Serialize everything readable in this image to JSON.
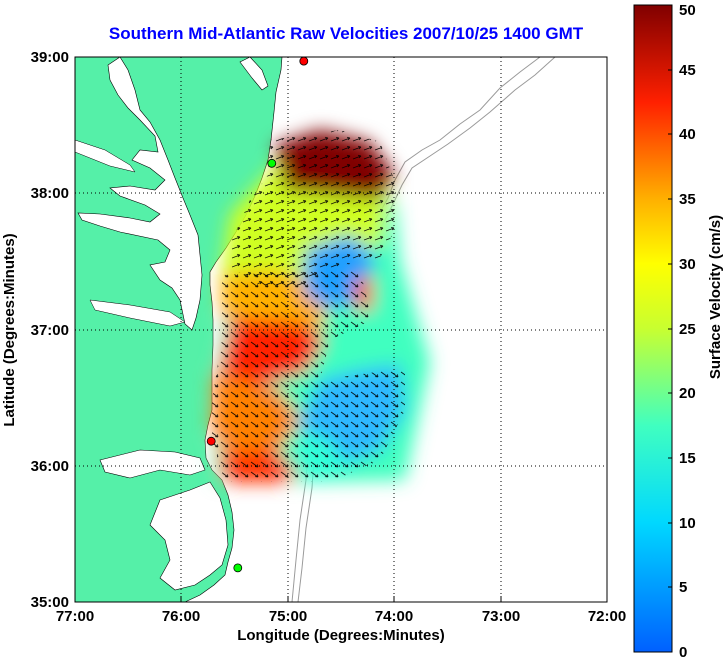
{
  "title": "Southern Mid-Atlantic Raw Velocities 2007/10/25 1400 GMT",
  "xlabel": "Longitude (Degrees:Minutes)",
  "ylabel": "Latitude (Degrees:Minutes)",
  "colorbar_label": "Surface Velocity (cm/s)",
  "x_ticks": [
    "77:00",
    "76:00",
    "75:00",
    "74:00",
    "73:00",
    "72:00"
  ],
  "y_ticks": [
    "39:00",
    "38:00",
    "37:00",
    "36:00",
    "35:00"
  ],
  "colorbar_ticks": [
    "0",
    "5",
    "10",
    "15",
    "20",
    "25",
    "30",
    "35",
    "40",
    "45",
    "50"
  ],
  "chart_data": {
    "type": "heatmap",
    "title": "Southern Mid-Atlantic Raw Velocities 2007/10/25 1400 GMT",
    "xlabel": "Longitude (Degrees:Minutes)",
    "ylabel": "Latitude (Degrees:Minutes)",
    "xlim": [
      -77,
      -72
    ],
    "ylim": [
      35,
      39
    ],
    "color_range": [
      0,
      50
    ],
    "color_units": "cm/s",
    "grid": true,
    "colors": {
      "land": "#55f0a8",
      "background": "#ffffff",
      "title": "#0000ff"
    },
    "velocity_regions": [
      {
        "lon": [
          -74.9,
          -74.1
        ],
        "lat": [
          38.0,
          38.4
        ],
        "value": 50
      },
      {
        "lon": [
          -75.3,
          -74.3
        ],
        "lat": [
          37.55,
          38.0
        ],
        "value": 28
      },
      {
        "lon": [
          -74.6,
          -74.3
        ],
        "lat": [
          37.3,
          37.6
        ],
        "value": 10
      },
      {
        "lon": [
          -75.5,
          -74.7
        ],
        "lat": [
          36.8,
          37.3
        ],
        "value": 42
      },
      {
        "lon": [
          -75.7,
          -75.0
        ],
        "lat": [
          36.2,
          36.8
        ],
        "value": 38
      },
      {
        "lon": [
          -74.8,
          -73.9
        ],
        "lat": [
          36.1,
          36.7
        ],
        "value": 10
      },
      {
        "lon": [
          -75.6,
          -74.7
        ],
        "lat": [
          35.9,
          36.2
        ],
        "value": 40
      }
    ],
    "stations": [
      {
        "lon": -74.85,
        "lat": 38.97,
        "color": "#ff0000"
      },
      {
        "lon": -75.15,
        "lat": 38.22,
        "color": "#00ff00"
      },
      {
        "lon": -75.72,
        "lat": 36.18,
        "color": "#ff0000"
      },
      {
        "lon": -75.47,
        "lat": 35.25,
        "color": "#00ff00"
      }
    ]
  }
}
